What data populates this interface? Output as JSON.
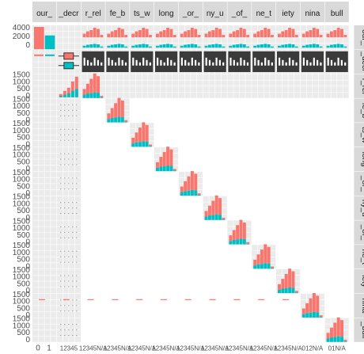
{
  "chart_data": {
    "type": "scatter-matrix",
    "variables": [
      "our_",
      "_decr",
      "r_rel",
      "fe_b",
      "ts_w",
      "long",
      "_or_",
      "ny_u",
      "_of_",
      "ne_t",
      "iety",
      "nina",
      "bull"
    ],
    "right_strip_labels": [
      "our_",
      "_decr",
      "r_rel",
      "fe_b",
      "ts_w",
      "long",
      "_or_",
      "ny_u",
      "_of_",
      "ne_t",
      "iety",
      "nina",
      "_bull"
    ],
    "fill_levels": [
      "0",
      "1"
    ],
    "colors": {
      "level_0": "#f8766d",
      "level_1": "#00bfc4",
      "strip": "#d9d9d9",
      "panel": "#ebebeb"
    },
    "facet_labels": [
      "0",
      "1"
    ],
    "top_row": {
      "y_ticks": [
        "4000",
        "2000",
        "0"
      ],
      "bar_values": [
        {
          "level": "0",
          "count": 4200
        },
        {
          "level": "1",
          "count": 2600
        }
      ]
    },
    "left_axis_ticks": [
      "1500",
      "1000",
      "500",
      "0"
    ],
    "x_tick_labels": [
      "0",
      "1",
      "12345",
      "12345",
      "N/A",
      "12345",
      "N/A",
      "12345",
      "N/A",
      "12345",
      "N/A",
      "12345",
      "N/A",
      "12345",
      "N/A",
      "12345",
      "N/A",
      "12345",
      "N/A",
      "12345",
      "N/A",
      "012",
      "N/A",
      "01",
      "N/A"
    ],
    "bottom_axis_ticks": [
      "0",
      "1",
      "12345",
      "12345N/A",
      "12345N/A",
      "12345N/A",
      "12345N/A",
      "12345N/A",
      "12345N/A",
      "12345N/A",
      "12345N/A",
      "12345N/A",
      "012N/A",
      "01N/A"
    ],
    "diagonal_hist": {
      "bins": [
        "1",
        "2",
        "3",
        "4",
        "5",
        "N/A"
      ],
      "level_0": [
        300,
        520,
        760,
        1000,
        880,
        80
      ],
      "level_1": [
        180,
        240,
        260,
        300,
        280,
        40
      ]
    },
    "grid": true,
    "legend": "none"
  }
}
